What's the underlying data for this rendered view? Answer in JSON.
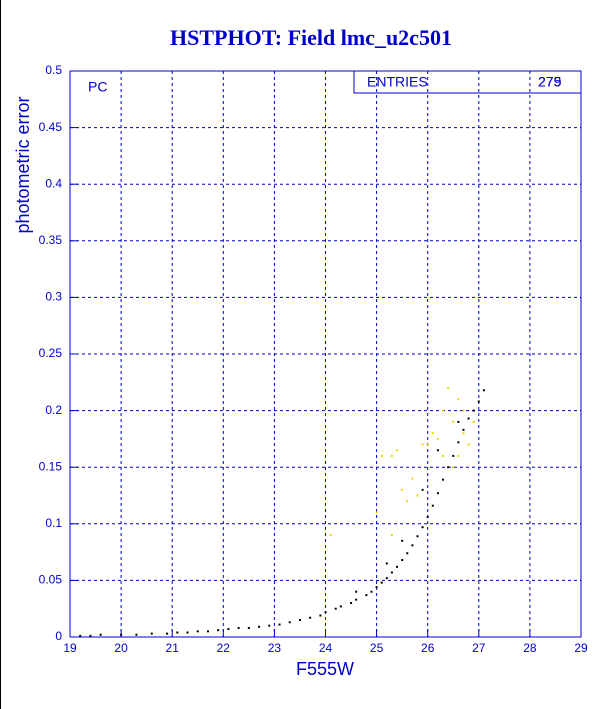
{
  "chart_data": {
    "type": "scatter",
    "title": "HSTPHOT: Field lmc_u2c501",
    "panel_label": "PC",
    "stats_label": "ENTRIES",
    "stats_values": [
      "279",
      "275"
    ],
    "x_label": "F555W",
    "y_label": "photometric error",
    "xlim": [
      19,
      29
    ],
    "xticks": [
      19,
      20,
      21,
      22,
      23,
      24,
      25,
      26,
      27,
      28,
      29
    ],
    "ylim": [
      0,
      0.5
    ],
    "yticks": [
      0,
      0.05,
      0.1,
      0.15,
      0.2,
      0.25,
      0.3,
      0.35,
      0.4,
      0.45,
      0.5
    ],
    "grid": true,
    "series": [
      {
        "color": "#000000",
        "x": [
          19.2,
          19.4,
          19.6,
          20.0,
          20.3,
          20.6,
          20.9,
          21.1,
          21.3,
          21.5,
          21.7,
          21.9,
          22.1,
          22.3,
          22.5,
          22.7,
          22.9,
          23.1,
          23.3,
          23.5,
          23.7,
          23.9,
          24.0,
          24.2,
          24.3,
          24.5,
          24.6,
          24.8,
          24.9,
          25.0,
          25.1,
          25.2,
          25.3,
          25.4,
          25.5,
          25.6,
          25.7,
          25.8,
          25.9,
          26.0,
          26.1,
          26.2,
          26.3,
          26.4,
          26.5,
          26.6,
          26.7,
          26.8,
          26.9,
          27.0,
          27.1,
          24.6,
          25.2,
          25.5,
          25.9,
          26.2,
          26.6
        ],
        "values": [
          0.001,
          0.001,
          0.002,
          0.002,
          0.002,
          0.003,
          0.003,
          0.004,
          0.004,
          0.005,
          0.005,
          0.006,
          0.007,
          0.008,
          0.008,
          0.009,
          0.01,
          0.011,
          0.013,
          0.015,
          0.017,
          0.019,
          0.022,
          0.025,
          0.027,
          0.03,
          0.033,
          0.037,
          0.04,
          0.044,
          0.048,
          0.052,
          0.057,
          0.062,
          0.068,
          0.074,
          0.081,
          0.089,
          0.097,
          0.106,
          0.116,
          0.127,
          0.139,
          0.15,
          0.16,
          0.172,
          0.183,
          0.193,
          0.2,
          0.208,
          0.218,
          0.04,
          0.065,
          0.085,
          0.13,
          0.165,
          0.19
        ]
      },
      {
        "color": "#e8d800",
        "x": [
          24.1,
          25.0,
          25.1,
          25.3,
          25.5,
          25.6,
          25.7,
          25.9,
          26.1,
          26.2,
          26.3,
          26.4,
          26.5,
          26.5,
          26.6,
          26.7,
          26.7,
          26.8,
          26.9,
          25.4,
          26.0,
          26.3,
          26.6,
          25.3,
          25.8
        ],
        "values": [
          0.09,
          0.11,
          0.16,
          0.16,
          0.13,
          0.12,
          0.14,
          0.17,
          0.18,
          0.175,
          0.2,
          0.22,
          0.19,
          0.15,
          0.21,
          0.18,
          0.2,
          0.17,
          0.19,
          0.165,
          0.17,
          0.16,
          0.16,
          0.09,
          0.125
        ]
      }
    ]
  }
}
